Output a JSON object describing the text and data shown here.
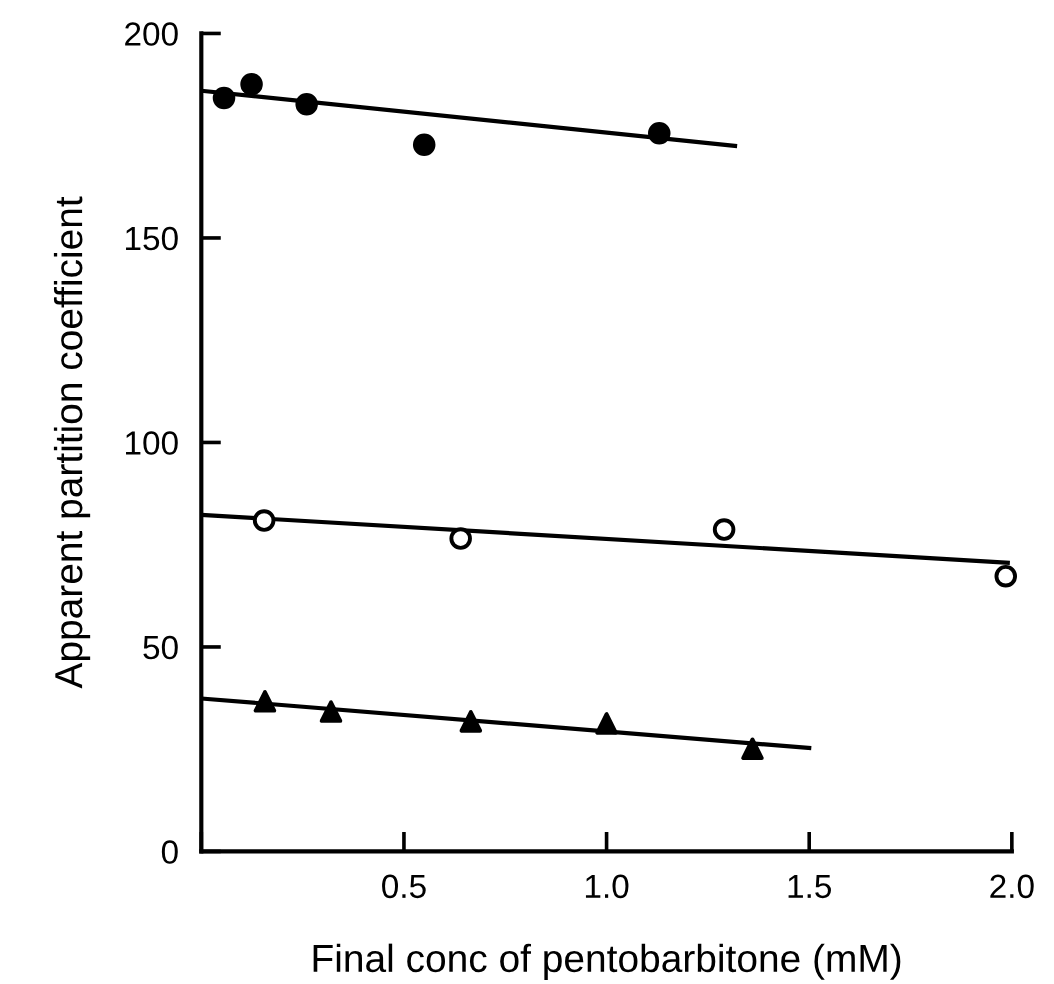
{
  "chart_data": {
    "type": "scatter",
    "xlabel": "Final conc of pentobarbitone (mM)",
    "ylabel": "Apparent partition coefficient",
    "xlim": [
      0,
      2.0
    ],
    "ylim": [
      0,
      200
    ],
    "xticks": [
      {
        "value": 0,
        "label": null
      },
      0.5,
      {
        "value": 1.0,
        "label": "1.0"
      },
      1.5,
      {
        "value": 2.0,
        "label": "2.0"
      }
    ],
    "yticks": [
      0,
      50,
      100,
      150,
      200
    ],
    "grid": false,
    "legend": false,
    "series": [
      {
        "type": "scatter",
        "marker": "circle",
        "color": "#000000",
        "x": [
          0.056,
          0.124,
          0.26,
          0.55,
          1.13
        ],
        "values": [
          184.2,
          187.6,
          182.7,
          172.8,
          175.6
        ]
      },
      {
        "type": "line",
        "marker": "none",
        "line_style": "solid",
        "color": "#000000",
        "x": [
          0,
          1.317
        ],
        "values": [
          186.0,
          172.5
        ]
      },
      {
        "type": "scatter",
        "marker": "circle",
        "color": "#ffffff",
        "x": [
          0.155,
          0.64,
          1.29,
          1.985
        ],
        "values": [
          80.9,
          76.5,
          78.7,
          67.3
        ]
      },
      {
        "type": "line",
        "marker": "none",
        "line_style": "solid",
        "color": "#000000",
        "x": [
          0,
          1.99
        ],
        "values": [
          82.3,
          70.6
        ]
      },
      {
        "type": "scatter",
        "marker": "triangle",
        "color": "#000000",
        "x": [
          0.157,
          0.32,
          0.665,
          1.0,
          1.36
        ],
        "values": [
          36.7,
          34.2,
          31.8,
          31.3,
          25.1
        ]
      },
      {
        "type": "line",
        "marker": "none",
        "line_style": "solid",
        "color": "#000000",
        "x": [
          0,
          1.5
        ],
        "values": [
          37.4,
          25.3
        ]
      }
    ]
  }
}
